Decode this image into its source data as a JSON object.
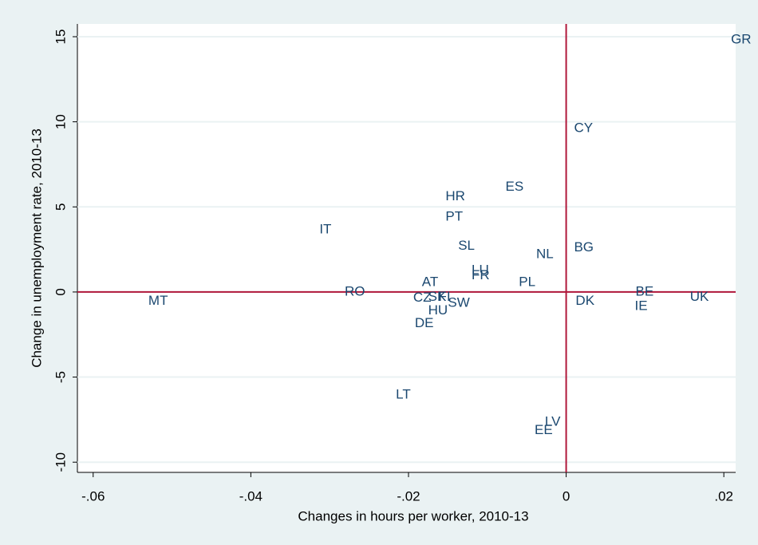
{
  "chart_data": {
    "type": "scatter",
    "x_label": "Changes in hours per worker, 2010-13",
    "y_label": "Change in unemployment rate, 2010-13",
    "point_labels": [
      "GR",
      "CY",
      "ES",
      "HR",
      "PT",
      "IT",
      "SL",
      "BG",
      "NL",
      "LU",
      "FR",
      "AT",
      "PL",
      "RO",
      "BE",
      "MT",
      "CZ",
      "SK",
      "FI",
      "SW",
      "HU",
      "DK",
      "IE",
      "UK",
      "DE",
      "LT",
      "LV",
      "EE"
    ],
    "x": [
      0.0209,
      0.001,
      -0.0077,
      -0.0153,
      -0.0153,
      -0.0313,
      -0.0137,
      0.001,
      -0.0038,
      -0.012,
      -0.012,
      -0.0183,
      -0.006,
      -0.0281,
      0.0088,
      -0.053,
      -0.0194,
      -0.0175,
      -0.0162,
      -0.015,
      -0.0175,
      0.0012,
      0.0087,
      0.0157,
      -0.0192,
      -0.0216,
      -0.0027,
      -0.004
    ],
    "y": [
      14.8,
      9.6,
      6.15,
      5.6,
      4.4,
      3.65,
      2.7,
      2.6,
      2.2,
      1.25,
      0.95,
      0.55,
      0.55,
      0.0,
      0.0,
      -0.55,
      -0.35,
      -0.3,
      -0.3,
      -0.65,
      -1.1,
      -0.55,
      -0.85,
      -0.3,
      -1.85,
      -6.05,
      -7.65,
      -8.15
    ],
    "color": "#1a476f",
    "reference_lines": {
      "x": 0,
      "y": 0,
      "color": "#b0173a"
    },
    "xlim": [
      -0.062,
      0.0215
    ],
    "ylim": [
      -10.6,
      15.75
    ],
    "xticks": [
      {
        "value": -0.06,
        "label": "-.06"
      },
      {
        "value": -0.04,
        "label": "-.04"
      },
      {
        "value": -0.02,
        "label": "-.02"
      },
      0,
      {
        "value": 0.02,
        "label": ".02"
      }
    ],
    "yticks": [
      15,
      10,
      5,
      0,
      -5,
      -10
    ],
    "grid": true
  }
}
